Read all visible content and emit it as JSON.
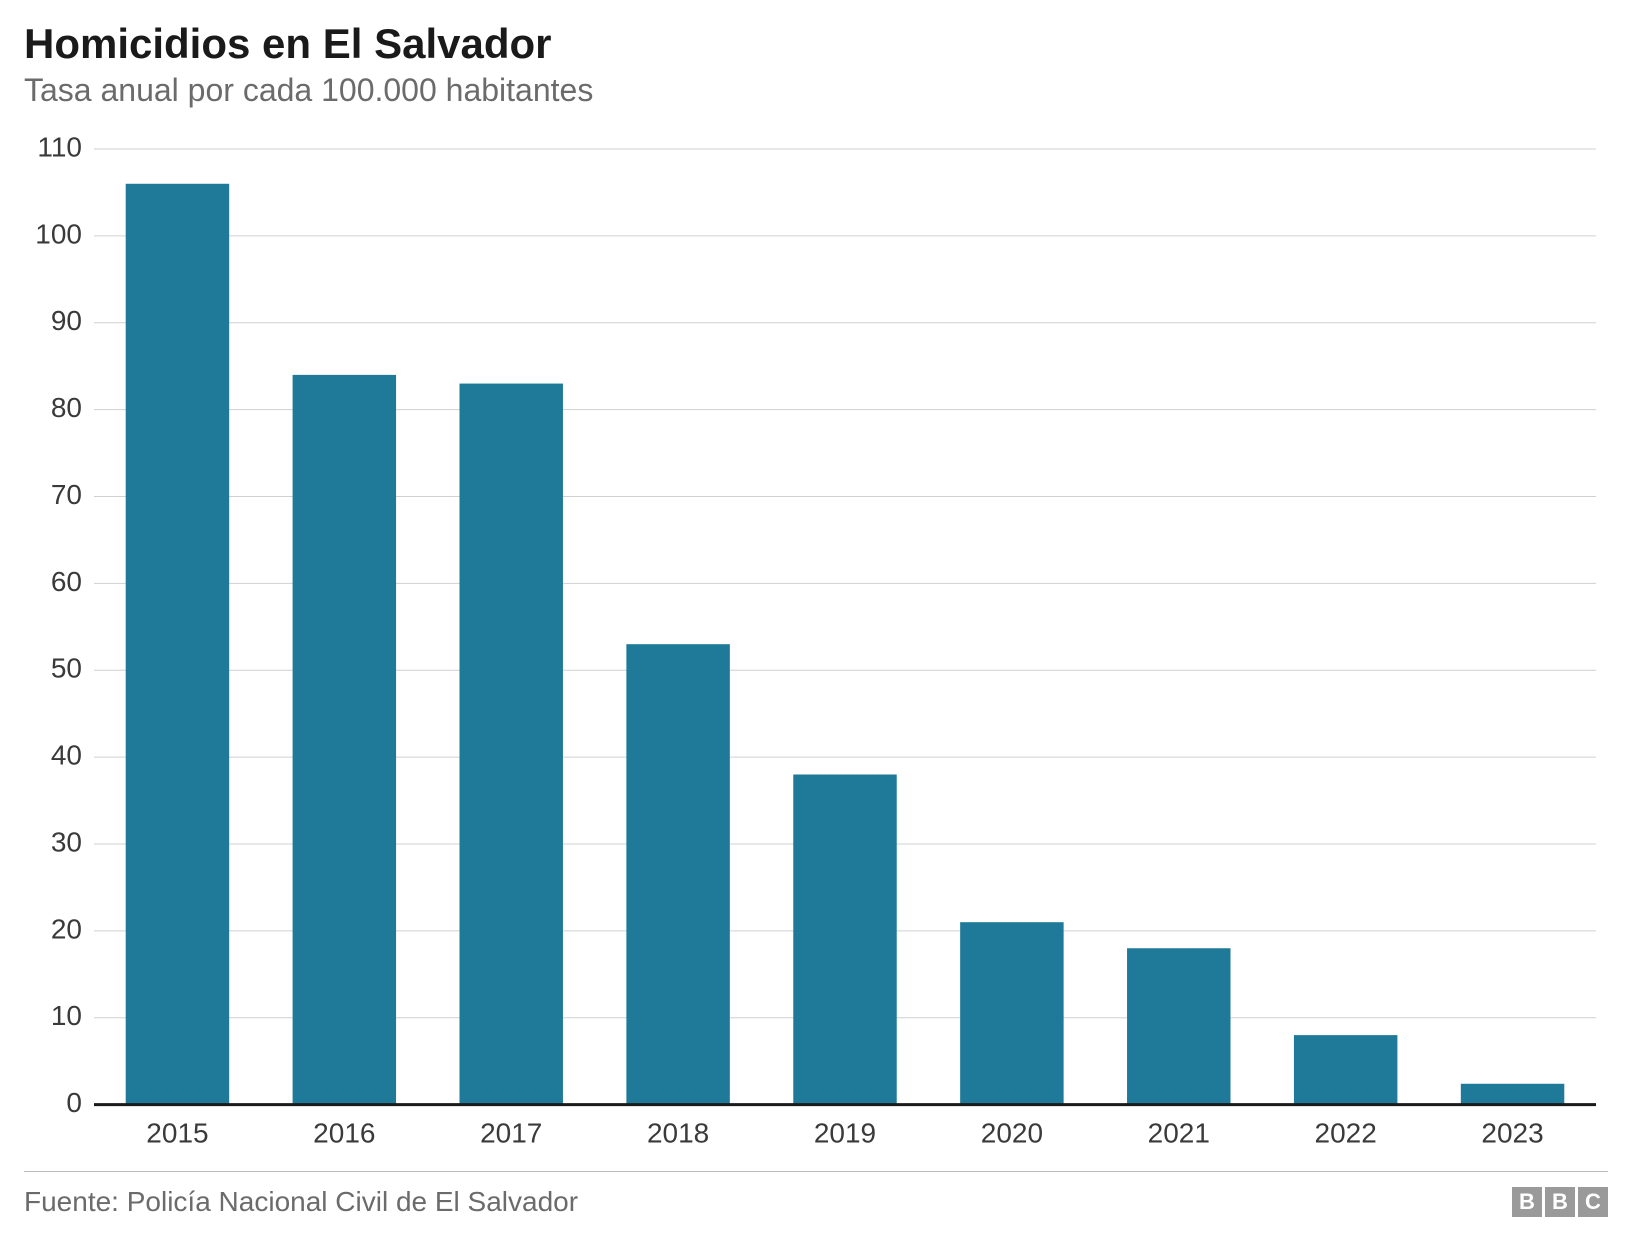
{
  "title": "Homicidios en El Salvador",
  "subtitle": "Tasa anual por cada 100.000 habitantes",
  "source": "Fuente: Policía Nacional Civil de El Salvador",
  "logo_letters": [
    "B",
    "B",
    "C"
  ],
  "chart": {
    "type": "bar",
    "categories": [
      "2015",
      "2016",
      "2017",
      "2018",
      "2019",
      "2020",
      "2021",
      "2022",
      "2023"
    ],
    "values": [
      106,
      84,
      83,
      53,
      38,
      21,
      18,
      8,
      2.4
    ],
    "bar_color": "#1f7a99",
    "background_color": "#ffffff",
    "grid_color": "#d0d0d0",
    "baseline_color": "#1a1a1a",
    "baseline_width": 3,
    "ylim": [
      0,
      110
    ],
    "ytick_step": 10,
    "yticks": [
      0,
      10,
      20,
      30,
      40,
      50,
      60,
      70,
      80,
      90,
      100,
      110
    ],
    "axis_label_color": "#3a3a3a",
    "axis_label_fontsize": 28,
    "bar_width_ratio": 0.62
  },
  "colors": {
    "title": "#1a1a1a",
    "subtitle": "#6b6b6b",
    "source": "#6b6b6b",
    "footer_border": "#bdbdbd",
    "logo_bg": "#9a9a9a",
    "logo_fg": "#ffffff"
  },
  "fonts": {
    "title_size": 42,
    "title_weight": 700,
    "subtitle_size": 32,
    "source_size": 28,
    "family": "Helvetica, Arial, sans-serif"
  }
}
